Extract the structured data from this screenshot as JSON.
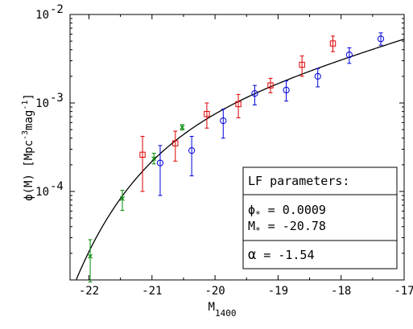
{
  "chart_data": {
    "type": "scatter",
    "title": "",
    "xlabel": "M",
    "xlabel_sub": "1400",
    "ylabel": "ϕ(M)  [Mpc",
    "ylabel_exp1": "-3",
    "ylabel_mid": "mag",
    "ylabel_exp2": "-1",
    "ylabel_end": "]",
    "xlim": [
      -22.3,
      -17.0
    ],
    "ylog": true,
    "ylim": [
      1e-05,
      0.01
    ],
    "xticks": [
      -22,
      -21,
      -20,
      -19,
      -18,
      -17
    ],
    "xtick_labels": [
      "-22",
      "-21",
      "-20",
      "-19",
      "-18",
      "-17"
    ],
    "yticks": [
      0.0001,
      0.001,
      0.01
    ],
    "ytick_bases": [
      "10",
      "10",
      "10"
    ],
    "ytick_exps": [
      "-4",
      "-3",
      "-2"
    ],
    "grid": false,
    "series": [
      {
        "marker": "cross",
        "color": "#008800",
        "points": [
          {
            "x": -21.98,
            "y": 1.85e-05,
            "lo": 9.5e-06,
            "hi": 2.85e-05
          },
          {
            "x": -21.47,
            "y": 8.3e-05,
            "lo": 6.1e-05,
            "hi": 0.000103
          },
          {
            "x": -20.97,
            "y": 0.000235,
            "lo": 0.000205,
            "hi": 0.00027
          },
          {
            "x": -20.52,
            "y": 0.00053,
            "lo": 0.000495,
            "hi": 0.00057
          }
        ]
      },
      {
        "marker": "square",
        "color": "#dd0000",
        "points": [
          {
            "x": -21.15,
            "y": 0.00026,
            "lo": 0.0001,
            "hi": 0.00042
          },
          {
            "x": -20.63,
            "y": 0.00035,
            "lo": 0.00022,
            "hi": 0.00048
          },
          {
            "x": -20.13,
            "y": 0.00075,
            "lo": 0.00052,
            "hi": 0.001
          },
          {
            "x": -19.63,
            "y": 0.00097,
            "lo": 0.00068,
            "hi": 0.00125
          },
          {
            "x": -19.12,
            "y": 0.00158,
            "lo": 0.0013,
            "hi": 0.0019
          },
          {
            "x": -18.62,
            "y": 0.0027,
            "lo": 0.002,
            "hi": 0.0034
          },
          {
            "x": -18.13,
            "y": 0.0047,
            "lo": 0.0038,
            "hi": 0.0057
          }
        ]
      },
      {
        "marker": "circle",
        "color": "#0000dd",
        "points": [
          {
            "x": -20.87,
            "y": 0.00021,
            "lo": 9e-05,
            "hi": 0.00033
          },
          {
            "x": -20.37,
            "y": 0.00029,
            "lo": 0.00015,
            "hi": 0.00042
          },
          {
            "x": -19.87,
            "y": 0.00063,
            "lo": 0.0004,
            "hi": 0.00085
          },
          {
            "x": -19.37,
            "y": 0.00128,
            "lo": 0.00095,
            "hi": 0.00158
          },
          {
            "x": -18.87,
            "y": 0.0014,
            "lo": 0.00105,
            "hi": 0.00177
          },
          {
            "x": -18.37,
            "y": 0.002,
            "lo": 0.00152,
            "hi": 0.00245
          },
          {
            "x": -17.87,
            "y": 0.0035,
            "lo": 0.0028,
            "hi": 0.0042
          },
          {
            "x": -17.37,
            "y": 0.0053,
            "lo": 0.0045,
            "hi": 0.0062
          }
        ]
      }
    ],
    "fit": {
      "type": "schechter",
      "phi_star": 0.0009,
      "m_star": -20.78,
      "alpha": -1.54,
      "color": "#000000"
    }
  },
  "legend_box": {
    "title": "LF parameters:",
    "phi_symbol": "ϕ",
    "phi_sub": "*",
    "phi_value": " = 0.0009",
    "m_symbol": "M",
    "m_sub": "*",
    "m_value": " = -20.78",
    "alpha_symbol": "α",
    "alpha_value": " = -1.54"
  }
}
